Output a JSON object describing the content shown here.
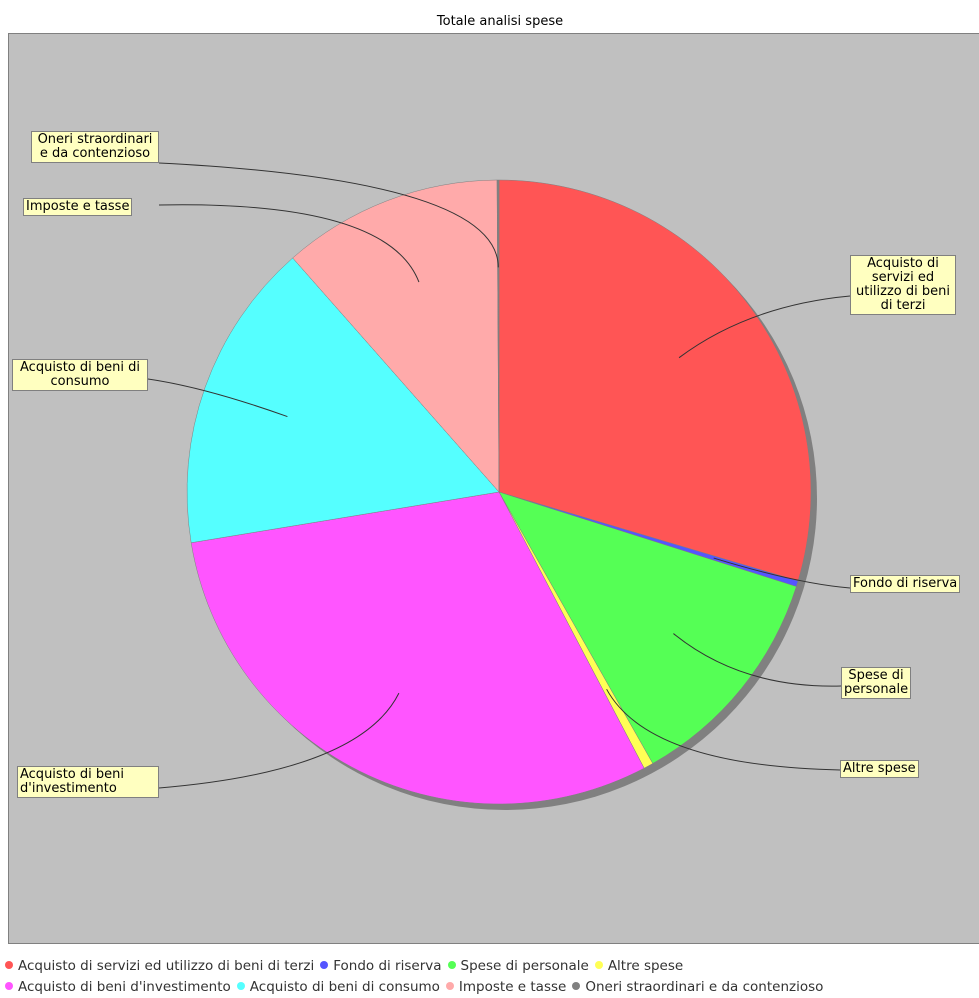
{
  "chart_data": {
    "type": "pie",
    "title": "Totale analisi spese",
    "slices": [
      {
        "label": "Acquisto di servizi ed utilizzo di beni di terzi",
        "callout": "Acquisto di servizi ed utilizzo di beni di terzi",
        "value": 29.6,
        "color": "#ff5555"
      },
      {
        "label": "Fondo di riserva",
        "callout": "Fondo di riserva",
        "value": 0.3,
        "color": "#5555ff"
      },
      {
        "label": "Spese di personale",
        "callout": "Spese di personale",
        "value": 11.9,
        "color": "#55ff55"
      },
      {
        "label": "Altre spese",
        "callout": "Altre spese",
        "value": 0.5,
        "color": "#ffff55"
      },
      {
        "label": "Acquisto di beni d'investimento",
        "callout": "Acquisto di beni d'investimento",
        "value": 30.1,
        "color": "#ff55ff"
      },
      {
        "label": "Acquisto di beni di consumo",
        "callout": "Acquisto di beni di consumo",
        "value": 16.1,
        "color": "#55ffff"
      },
      {
        "label": "Imposte e tasse",
        "callout": "Imposte e tasse",
        "value": 11.4,
        "color": "#ffaaaa"
      },
      {
        "label": "Oneri straordinari e da contenzioso",
        "callout": "Oneri straordinari e da contenzioso",
        "value": 0.1,
        "color": "#808080"
      }
    ],
    "legend_position": "bottom"
  }
}
